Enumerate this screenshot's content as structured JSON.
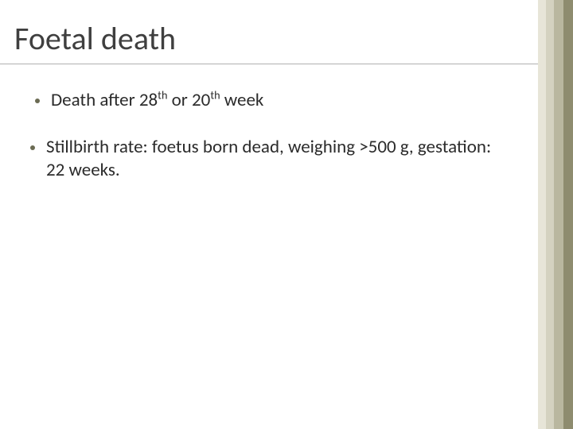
{
  "slide": {
    "title": "Foetal death",
    "title_color": "#3f3f3f",
    "title_fontsize": 40,
    "underline_color": "#b0b0b0",
    "bullets": [
      {
        "segments": [
          {
            "t": " Death after 28"
          },
          {
            "t": "th",
            "sup": true
          },
          {
            "t": " or 20"
          },
          {
            "t": "th",
            "sup": true
          },
          {
            "t": " week"
          }
        ]
      },
      {
        "segments": [
          {
            "t": "Stillbirth rate: foetus born dead, weighing >500 g, gestation: 22 weeks."
          }
        ]
      }
    ],
    "bullet_color": "#6b6b53",
    "body_text_color": "#2b2b2b",
    "body_fontsize": 23,
    "background_color": "#ffffff",
    "right_bands": [
      {
        "color": "#e7e5d8",
        "width": 10
      },
      {
        "color": "#d4d2c0",
        "width": 10
      },
      {
        "color": "#b9b79f",
        "width": 12
      },
      {
        "color": "#8e8c6f",
        "width": 12
      }
    ]
  }
}
